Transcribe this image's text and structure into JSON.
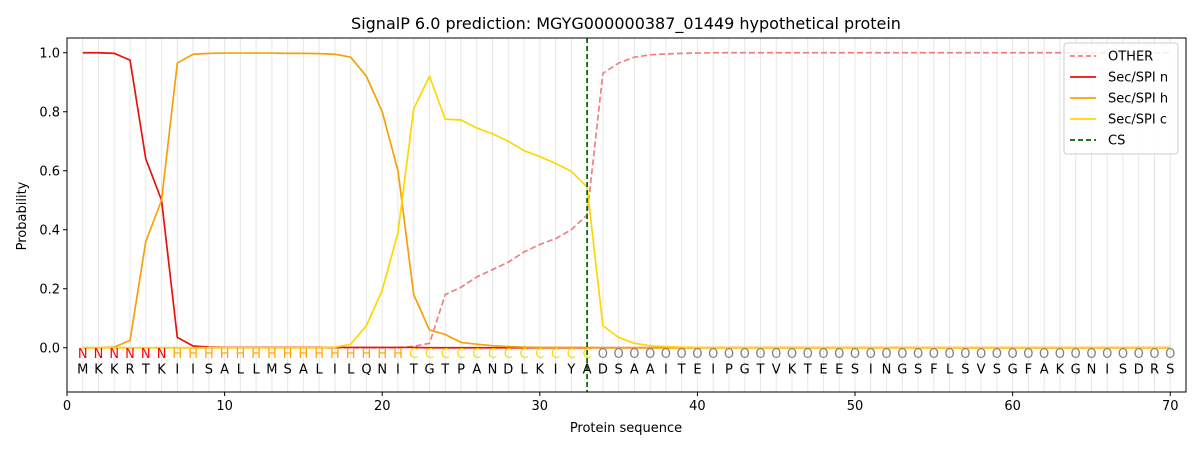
{
  "chart_data": {
    "type": "line",
    "title": "SignalP 6.0 prediction: MGYG000000387_01449 hypothetical protein",
    "xlabel": "Protein sequence",
    "ylabel": "Probability",
    "xlim": [
      0,
      71
    ],
    "ylim": [
      -0.15,
      1.05
    ],
    "x_ticks": [
      0,
      10,
      20,
      30,
      40,
      50,
      60,
      70
    ],
    "y_ticks": [
      0.0,
      0.2,
      0.4,
      0.6,
      0.8,
      1.0
    ],
    "legend_position": "top-right",
    "sequence": [
      "M",
      "K",
      "K",
      "R",
      "T",
      "K",
      "I",
      "I",
      "S",
      "A",
      "L",
      "L",
      "M",
      "S",
      "A",
      "L",
      "I",
      "L",
      "Q",
      "N",
      "I",
      "T",
      "G",
      "T",
      "P",
      "A",
      "N",
      "D",
      "L",
      "K",
      "I",
      "Y",
      "A",
      "D",
      "S",
      "A",
      "A",
      "I",
      "T",
      "E",
      "I",
      "P",
      "G",
      "T",
      "V",
      "K",
      "T",
      "E",
      "E",
      "S",
      "I",
      "N",
      "G",
      "S",
      "F",
      "L",
      "S",
      "V",
      "S",
      "G",
      "F",
      "A",
      "K",
      "G",
      "N",
      "I",
      "S",
      "D",
      "R",
      "S"
    ],
    "region_labels": [
      "N",
      "N",
      "N",
      "N",
      "N",
      "N",
      "H",
      "H",
      "H",
      "H",
      "H",
      "H",
      "H",
      "H",
      "H",
      "H",
      "H",
      "H",
      "H",
      "H",
      "H",
      "C",
      "C",
      "C",
      "C",
      "C",
      "C",
      "C",
      "C",
      "C",
      "C",
      "C",
      "C",
      "O",
      "O",
      "O",
      "O",
      "O",
      "O",
      "O",
      "O",
      "O",
      "O",
      "O",
      "O",
      "O",
      "O",
      "O",
      "O",
      "O",
      "O",
      "O",
      "O",
      "O",
      "O",
      "O",
      "O",
      "O",
      "O",
      "O",
      "O",
      "O",
      "O",
      "O",
      "O",
      "O",
      "O",
      "O",
      "O",
      "O"
    ],
    "region_colors": {
      "N": "#ff0000",
      "H": "#ffa500",
      "C": "#ffd700",
      "O": "#808080"
    },
    "cleavage_site": 33,
    "series": [
      {
        "name": "OTHER",
        "color": "#f08080",
        "dash": true,
        "values": [
          0,
          0,
          0,
          0,
          0,
          0,
          0,
          0,
          0,
          0,
          0,
          0,
          0,
          0,
          0,
          0,
          0,
          0,
          0,
          0,
          0,
          0.005,
          0.015,
          0.18,
          0.205,
          0.24,
          0.265,
          0.29,
          0.325,
          0.35,
          0.37,
          0.4,
          0.45,
          0.93,
          0.965,
          0.985,
          0.993,
          0.996,
          0.998,
          0.999,
          1,
          1,
          1,
          1,
          1,
          1,
          1,
          1,
          1,
          1,
          1,
          1,
          1,
          1,
          1,
          1,
          1,
          1,
          1,
          1,
          1,
          1,
          1,
          1,
          1,
          1,
          1,
          1,
          1,
          1
        ]
      },
      {
        "name": "Sec/SPI n",
        "color": "#e8120c",
        "dash": false,
        "values": [
          1,
          1,
          0.998,
          0.975,
          0.64,
          0.5,
          0.035,
          0.006,
          0.002,
          0.001,
          0.001,
          0.001,
          0.001,
          0.001,
          0.001,
          0.001,
          0.001,
          0.001,
          0.001,
          0.001,
          0.001,
          0.001,
          0,
          0,
          0,
          0,
          0,
          0,
          0,
          0,
          0,
          0,
          0,
          0,
          0,
          0,
          0,
          0,
          0,
          0,
          0,
          0,
          0,
          0,
          0,
          0,
          0,
          0,
          0,
          0,
          0,
          0,
          0,
          0,
          0,
          0,
          0,
          0,
          0,
          0,
          0,
          0,
          0,
          0,
          0,
          0,
          0,
          0,
          0,
          0
        ]
      },
      {
        "name": "Sec/SPI h",
        "color": "#f5a20a",
        "dash": false,
        "values": [
          0,
          0,
          0.002,
          0.025,
          0.36,
          0.5,
          0.965,
          0.995,
          0.998,
          0.999,
          0.999,
          0.999,
          0.999,
          0.998,
          0.998,
          0.997,
          0.995,
          0.985,
          0.92,
          0.8,
          0.6,
          0.18,
          0.06,
          0.045,
          0.018,
          0.012,
          0.007,
          0.004,
          0.002,
          0.001,
          0.001,
          0.001,
          0.001,
          0,
          0,
          0,
          0,
          0,
          0,
          0,
          0,
          0,
          0,
          0,
          0,
          0,
          0,
          0,
          0,
          0,
          0,
          0,
          0,
          0,
          0,
          0,
          0,
          0,
          0,
          0,
          0,
          0,
          0,
          0,
          0,
          0,
          0,
          0,
          0,
          0
        ]
      },
      {
        "name": "Sec/SPI c",
        "color": "#ffd700",
        "dash": false,
        "values": [
          0,
          0,
          0,
          0,
          0,
          0,
          0,
          0,
          0,
          0,
          0,
          0,
          0,
          0,
          0,
          0,
          0.002,
          0.012,
          0.075,
          0.195,
          0.39,
          0.81,
          0.92,
          0.775,
          0.772,
          0.745,
          0.725,
          0.7,
          0.668,
          0.648,
          0.625,
          0.598,
          0.545,
          0.075,
          0.035,
          0.015,
          0.007,
          0.004,
          0.002,
          0.001,
          0,
          0,
          0,
          0,
          0,
          0,
          0,
          0,
          0,
          0,
          0,
          0,
          0,
          0,
          0,
          0,
          0,
          0,
          0,
          0,
          0,
          0,
          0,
          0,
          0,
          0,
          0,
          0,
          0,
          0
        ]
      }
    ],
    "cs_legend": {
      "name": "CS",
      "color": "#006400"
    }
  }
}
